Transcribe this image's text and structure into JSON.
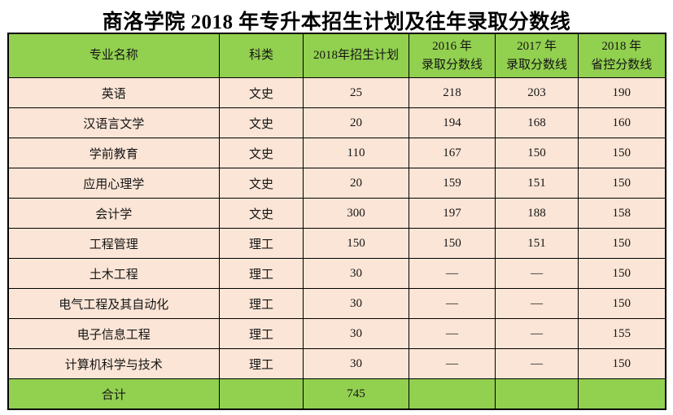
{
  "title": "商洛学院 2018 年专升本招生计划及往年录取分数线",
  "colors": {
    "header_green": "#92d050",
    "row_peach": "#fbe5d6",
    "border_black": "#000000",
    "title_text": "#000000"
  },
  "table": {
    "columns": [
      {
        "line1": "专业名称",
        "line2": ""
      },
      {
        "line1": "科类",
        "line2": ""
      },
      {
        "line1": "2018年招生计划",
        "line2": ""
      },
      {
        "line1": "2016 年",
        "line2": "录取分数线"
      },
      {
        "line1": "2017 年",
        "line2": "录取分数线"
      },
      {
        "line1": "2018 年",
        "line2": "省控分数线"
      }
    ],
    "rows": [
      {
        "cells": [
          "英语",
          "文史",
          "25",
          "218",
          "203",
          "190"
        ]
      },
      {
        "cells": [
          "汉语言文学",
          "文史",
          "20",
          "194",
          "168",
          "160"
        ]
      },
      {
        "cells": [
          "学前教育",
          "文史",
          "110",
          "167",
          "150",
          "150"
        ]
      },
      {
        "cells": [
          "应用心理学",
          "文史",
          "20",
          "159",
          "151",
          "150"
        ]
      },
      {
        "cells": [
          "会计学",
          "文史",
          "300",
          "197",
          "188",
          "158"
        ]
      },
      {
        "cells": [
          "工程管理",
          "理工",
          "150",
          "150",
          "151",
          "150"
        ]
      },
      {
        "cells": [
          "土木工程",
          "理工",
          "30",
          "—",
          "—",
          "150"
        ]
      },
      {
        "cells": [
          "电气工程及其自动化",
          "理工",
          "30",
          "—",
          "—",
          "150"
        ]
      },
      {
        "cells": [
          "电子信息工程",
          "理工",
          "30",
          "—",
          "—",
          "155"
        ]
      },
      {
        "cells": [
          "计算机科学与技术",
          "理工",
          "30",
          "—",
          "—",
          "150"
        ]
      }
    ],
    "total": {
      "cells": [
        "合计",
        "",
        "745",
        "",
        "",
        ""
      ]
    }
  }
}
